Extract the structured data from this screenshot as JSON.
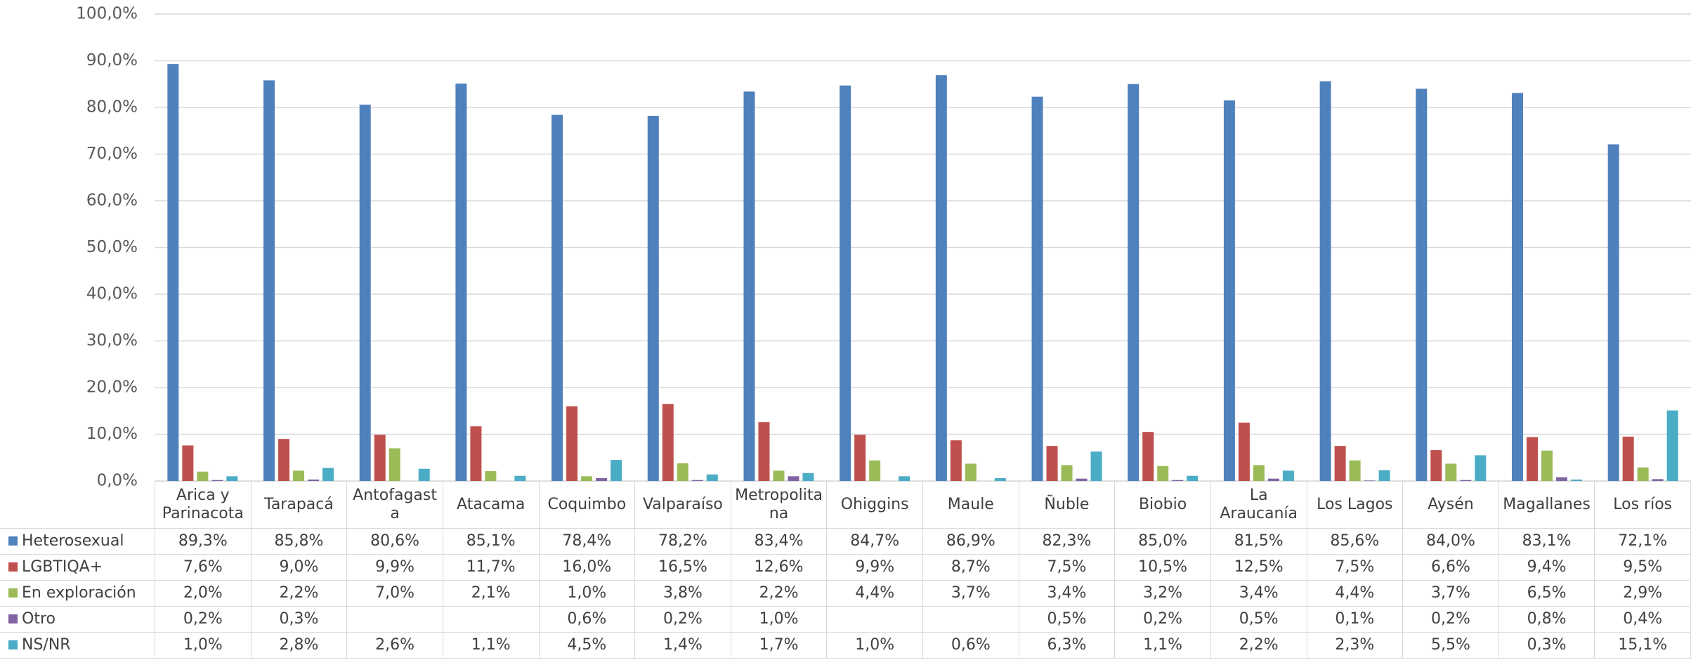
{
  "chart_data": {
    "type": "bar",
    "categories": [
      "Arica y Parinacota",
      "Tarapacá",
      "Antofagasta",
      "Atacama",
      "Coquimbo",
      "Valparaíso",
      "Metropolitana",
      "Ohiggins",
      "Maule",
      "Ñuble",
      "Biobio",
      "La Araucanía",
      "Los Lagos",
      "Aysén",
      "Magallanes",
      "Los ríos"
    ],
    "series": [
      {
        "name": "Heterosexual",
        "color": "#4f81bd",
        "values": [
          89.3,
          85.8,
          80.6,
          85.1,
          78.4,
          78.2,
          83.4,
          84.7,
          86.9,
          82.3,
          85.0,
          81.5,
          85.6,
          84.0,
          83.1,
          72.1
        ],
        "value_labels": [
          "89,3%",
          "85,8%",
          "80,6%",
          "85,1%",
          "78,4%",
          "78,2%",
          "83,4%",
          "84,7%",
          "86,9%",
          "82,3%",
          "85,0%",
          "81,5%",
          "85,6%",
          "84,0%",
          "83,1%",
          "72,1%"
        ]
      },
      {
        "name": "LGBTIQA+",
        "color": "#c0504d",
        "values": [
          7.6,
          9.0,
          9.9,
          11.7,
          16.0,
          16.5,
          12.6,
          9.9,
          8.7,
          7.5,
          10.5,
          12.5,
          7.5,
          6.6,
          9.4,
          9.5
        ],
        "value_labels": [
          "7,6%",
          "9,0%",
          "9,9%",
          "11,7%",
          "16,0%",
          "16,5%",
          "12,6%",
          "9,9%",
          "8,7%",
          "7,5%",
          "10,5%",
          "12,5%",
          "7,5%",
          "6,6%",
          "9,4%",
          "9,5%"
        ]
      },
      {
        "name": "En exploración",
        "color": "#9bbb59",
        "values": [
          2.0,
          2.2,
          7.0,
          2.1,
          1.0,
          3.8,
          2.2,
          4.4,
          3.7,
          3.4,
          3.2,
          3.4,
          4.4,
          3.7,
          6.5,
          2.9
        ],
        "value_labels": [
          "2,0%",
          "2,2%",
          "7,0%",
          "2,1%",
          "1,0%",
          "3,8%",
          "2,2%",
          "4,4%",
          "3,7%",
          "3,4%",
          "3,2%",
          "3,4%",
          "4,4%",
          "3,7%",
          "6,5%",
          "2,9%"
        ]
      },
      {
        "name": "Otro",
        "color": "#8064a2",
        "values": [
          0.2,
          0.3,
          null,
          null,
          0.6,
          0.2,
          1.0,
          null,
          null,
          0.5,
          0.2,
          0.5,
          0.1,
          0.2,
          0.8,
          0.4
        ],
        "value_labels": [
          "0,2%",
          "0,3%",
          null,
          null,
          "0,6%",
          "0,2%",
          "1,0%",
          null,
          null,
          "0,5%",
          "0,2%",
          "0,5%",
          "0,1%",
          "0,2%",
          "0,8%",
          "0,4%"
        ]
      },
      {
        "name": "NS/NR",
        "color": "#4bacc6",
        "values": [
          1.0,
          2.8,
          2.6,
          1.1,
          4.5,
          1.4,
          1.7,
          1.0,
          0.6,
          6.3,
          1.1,
          2.2,
          2.3,
          5.5,
          0.3,
          15.1
        ],
        "value_labels": [
          "1,0%",
          "2,8%",
          "2,6%",
          "1,1%",
          "4,5%",
          "1,4%",
          "1,7%",
          "1,0%",
          "0,6%",
          "6,3%",
          "1,1%",
          "2,2%",
          "2,3%",
          "5,5%",
          "0,3%",
          "15,1%"
        ]
      }
    ],
    "ylim": [
      0,
      100
    ],
    "yticks": [
      {
        "value": 0,
        "label": "0,0%"
      },
      {
        "value": 10,
        "label": "10,0%"
      },
      {
        "value": 20,
        "label": "20,0%"
      },
      {
        "value": 30,
        "label": "30,0%"
      },
      {
        "value": 40,
        "label": "40,0%"
      },
      {
        "value": 50,
        "label": "50,0%"
      },
      {
        "value": 60,
        "label": "60,0%"
      },
      {
        "value": 70,
        "label": "70,0%"
      },
      {
        "value": 80,
        "label": "80,0%"
      },
      {
        "value": 90,
        "label": "90,0%"
      },
      {
        "value": 100,
        "label": "100,0%"
      }
    ],
    "grid": true
  }
}
